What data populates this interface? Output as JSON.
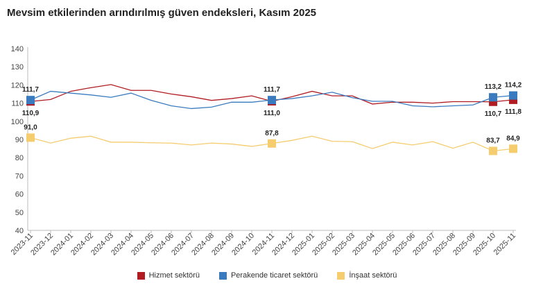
{
  "chart_data": {
    "type": "line",
    "title": "Mevsim etkilerinden arındırılmış güven endeksleri, Kasım 2025",
    "xlabel": "",
    "ylabel": "",
    "ylim": [
      40,
      140
    ],
    "yticks": [
      40,
      50,
      60,
      70,
      80,
      90,
      100,
      110,
      120,
      130,
      140
    ],
    "grid": false,
    "legend": "bottom",
    "categories": [
      "2023-11",
      "2023-12",
      "2024-01",
      "2024-02",
      "2024-03",
      "2024-04",
      "2024-05",
      "2024-06",
      "2024-07",
      "2024-08",
      "2024-09",
      "2024-10",
      "2024-11",
      "2024-12",
      "2025-01",
      "2025-02",
      "2025-03",
      "2025-04",
      "2025-05",
      "2025-06",
      "2025-07",
      "2025-08",
      "2025-09",
      "2025-10",
      "2025-11"
    ],
    "series": [
      {
        "name": "Hizmet sektörü",
        "color": "#b01c22",
        "values": [
          110.9,
          112,
          116.5,
          118.5,
          120.2,
          117,
          117,
          115,
          113.5,
          111.5,
          112.5,
          114,
          111.0,
          113.5,
          116.5,
          114,
          114,
          109.5,
          110.5,
          110.5,
          110,
          110.8,
          110.8,
          110.7,
          111.8
        ],
        "labels": {
          "0": "110,9",
          "12": "111,0",
          "23": "110,7",
          "24": "111,8"
        },
        "label_pos": "below"
      },
      {
        "name": "Perakende ticaret sektörü",
        "color": "#3a7bbf",
        "values": [
          111.7,
          116.5,
          115.5,
          114.5,
          113.2,
          115.5,
          111.5,
          108.5,
          107,
          107.8,
          110.5,
          110.5,
          111.7,
          112.5,
          114,
          116,
          113,
          111,
          111,
          108.5,
          108,
          108.5,
          109,
          113.2,
          114.2
        ],
        "labels": {
          "0": "111,7",
          "12": "111,7",
          "23": "113,2",
          "24": "114,2"
        },
        "label_pos": "above"
      },
      {
        "name": "İnşaat sektörü",
        "color": "#f5cc6e",
        "values": [
          91.0,
          88,
          90.7,
          91.8,
          88.5,
          88.5,
          88.2,
          88,
          87,
          88,
          87.5,
          86.2,
          87.8,
          89.5,
          91.8,
          89,
          88.8,
          85,
          88.5,
          87,
          88.8,
          85.2,
          88.5,
          83.7,
          84.9
        ],
        "labels": {
          "0": "91,0",
          "12": "87,8",
          "23": "83,7",
          "24": "84,9"
        },
        "label_pos": "above"
      }
    ]
  }
}
